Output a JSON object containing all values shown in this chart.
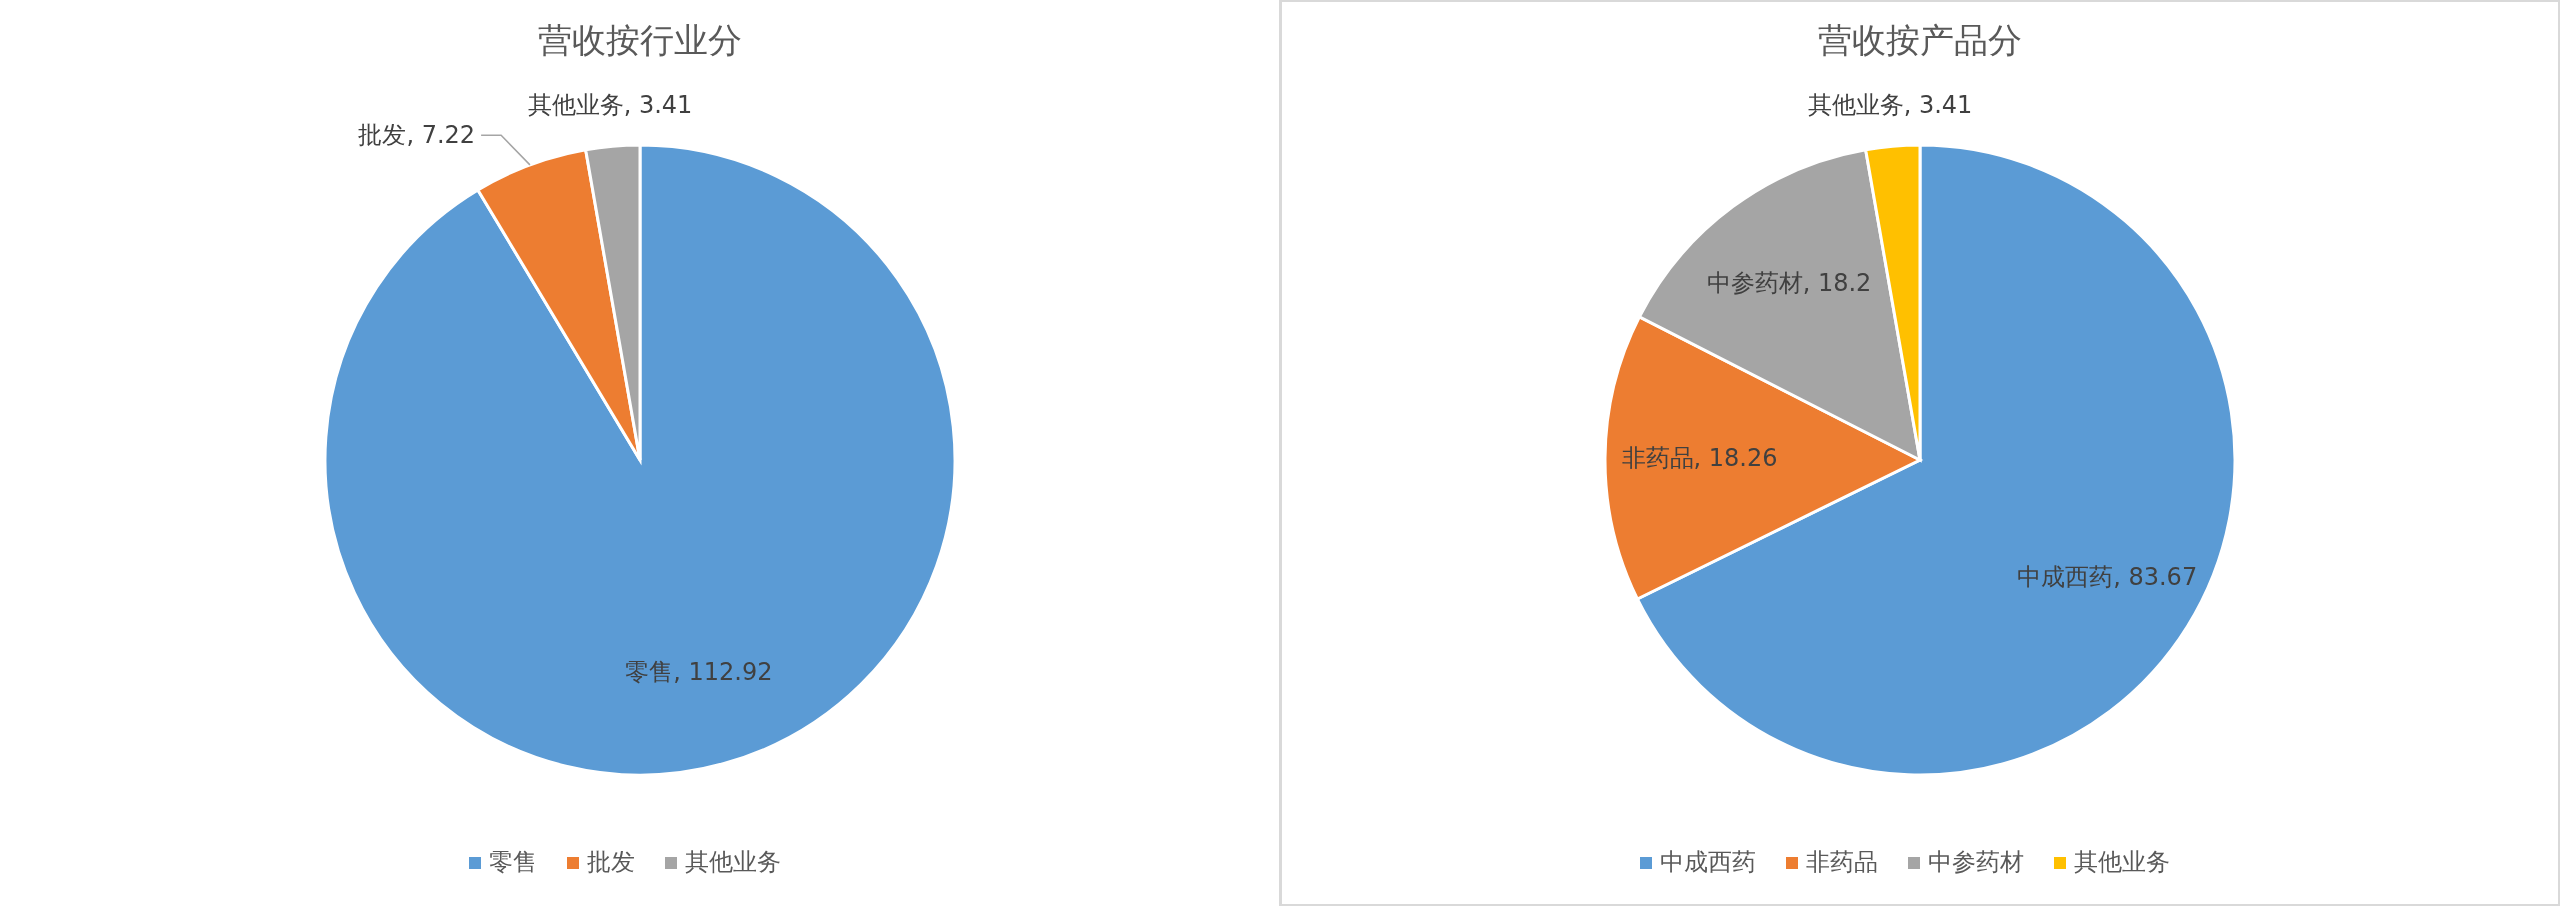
{
  "chart_data": [
    {
      "type": "pie",
      "title": "营收按行业分",
      "categories": [
        "零售",
        "批发",
        "其他业务"
      ],
      "values": [
        112.92,
        7.22,
        3.41
      ],
      "value_labels": [
        "零售, 112.92",
        "批发, 7.22",
        "其他业务, 3.41"
      ],
      "colors": [
        "#5b9bd5",
        "#ed7d31",
        "#a5a5a5"
      ],
      "legend": "bottom"
    },
    {
      "type": "pie",
      "title": "营收按产品分",
      "categories": [
        "中成西药",
        "非药品",
        "中参药材",
        "其他业务"
      ],
      "values": [
        83.67,
        18.26,
        18.2,
        3.41
      ],
      "value_labels": [
        "中成西药, 83.67",
        "非药品, 18.26",
        "中参药材, 18.2",
        "其他业务, 3.41"
      ],
      "colors": [
        "#5b9bd5",
        "#ed7d31",
        "#a5a5a5",
        "#ffc000"
      ],
      "legend": "bottom"
    }
  ]
}
